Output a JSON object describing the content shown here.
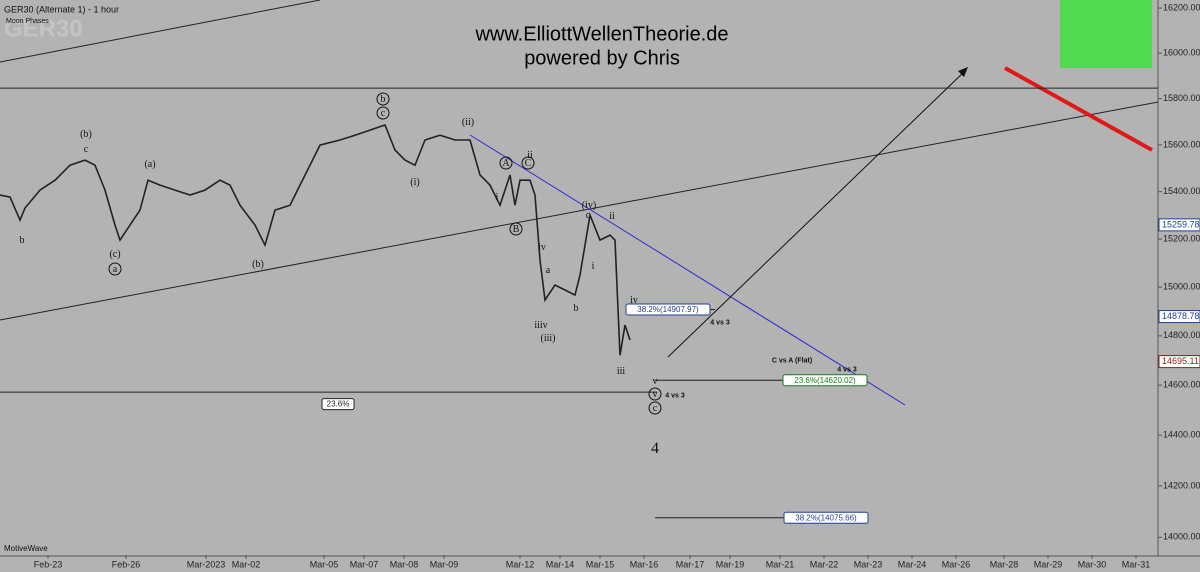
{
  "chart_data": {
    "type": "line",
    "title": "GER30 (Alternate 1) - 1 hour",
    "subtitle": "Moon Phases",
    "watermark": "GER30",
    "header": [
      "www.ElliottWellenTheorie.de",
      "powered by Chris"
    ],
    "footer": "MotiveWave",
    "log_scale": true,
    "color": "#222222",
    "x": [
      0,
      2.5,
      5,
      6.25,
      10,
      13.75,
      17.5,
      21.25,
      23.75,
      26.25,
      28.75,
      30,
      32.5,
      35,
      37,
      40,
      43.75,
      47.5,
      51.25,
      55,
      57.5,
      60,
      63.75,
      66.25,
      68.75,
      72.5,
      75,
      77.5,
      80,
      85,
      88.75,
      92.5,
      96.25,
      98.75,
      101.25,
      103.75,
      106.25,
      110,
      113.75,
      117.5,
      120,
      122.5,
      125,
      127.5,
      128.75,
      130,
      132.5,
      133.75,
      135,
      136.25,
      138.75,
      141.25,
      143.75,
      145,
      147.5,
      150,
      152.5,
      153.75,
      155,
      156.25,
      157.5
    ],
    "values": [
      15386,
      15377,
      15280,
      15331,
      15407,
      15449,
      15513,
      15535,
      15513,
      15407,
      15259,
      15196,
      15259,
      15322,
      15449,
      15428,
      15407,
      15386,
      15407,
      15449,
      15428,
      15343,
      15259,
      15175,
      15322,
      15343,
      15428,
      15513,
      15599,
      15621,
      15642,
      15664,
      15686,
      15578,
      15535,
      15513,
      15621,
      15642,
      15621,
      15621,
      15471,
      15428,
      15343,
      15471,
      15343,
      15449,
      15449,
      15386,
      15112,
      14947,
      15009,
      14988,
      14967,
      15050,
      15301,
      15196,
      15217,
      15196,
      14721,
      14844,
      14783
    ],
    "xlim": [
      0,
      289.5
    ],
    "xticks": [
      {
        "value": 12,
        "label": "Feb-23"
      },
      {
        "value": 31.5,
        "label": "Feb-26"
      },
      {
        "value": 51.5,
        "label": "Mar-2023"
      },
      {
        "value": 61.5,
        "label": "Mar-02"
      },
      {
        "value": 81,
        "label": "Mar-05"
      },
      {
        "value": 91,
        "label": "Mar-07"
      },
      {
        "value": 101,
        "label": "Mar-08"
      },
      {
        "value": 111,
        "label": "Mar-09"
      },
      {
        "value": 130,
        "label": "Mar-12"
      },
      {
        "value": 140,
        "label": "Mar-14"
      },
      {
        "value": 150,
        "label": "Mar-15"
      },
      {
        "value": 161,
        "label": "Mar-16"
      },
      {
        "value": 172.5,
        "label": "Mar-17"
      },
      {
        "value": 182.5,
        "label": "Mar-19"
      },
      {
        "value": 195,
        "label": "Mar-21"
      },
      {
        "value": 206,
        "label": "Mar-22"
      },
      {
        "value": 217,
        "label": "Mar-23"
      },
      {
        "value": 228,
        "label": "Mar-24"
      },
      {
        "value": 239,
        "label": "Mar-26"
      },
      {
        "value": 251,
        "label": "Mar-28"
      },
      {
        "value": 262,
        "label": "Mar-29"
      },
      {
        "value": 273,
        "label": "Mar-30"
      },
      {
        "value": 284,
        "label": "Mar-31"
      }
    ],
    "ylim": [
      13932,
      16236
    ],
    "yticks": [
      {
        "value": 16200,
        "label": "16200.00"
      },
      {
        "value": 16000,
        "label": "16000.00"
      },
      {
        "value": 15800,
        "label": "15800.00"
      },
      {
        "value": 15600,
        "label": "15600.00"
      },
      {
        "value": 15400,
        "label": "15400.00"
      },
      {
        "value": 15200,
        "label": "15200.00"
      },
      {
        "value": 15000,
        "label": "15000.00"
      },
      {
        "value": 14800,
        "label": "14800.00"
      },
      {
        "value": 14600,
        "label": "14600.00"
      },
      {
        "value": 14400,
        "label": "14400.00"
      },
      {
        "value": 14200,
        "label": "14200.00"
      },
      {
        "value": 14000,
        "label": "14000.00"
      }
    ],
    "price_markers": [
      {
        "value": 15259.78,
        "label": "15259.78",
        "color": "#1f3f8f"
      },
      {
        "value": 14878.78,
        "label": "14878.78",
        "color": "#1f3f8f"
      },
      {
        "value": 14695.11,
        "label": "14695.11",
        "color": "#8b1a1a"
      }
    ],
    "horizontal_lines": [
      15846
    ],
    "levels": [
      {
        "value": 14907.97,
        "label": "38.2%(14907.97)",
        "color": "#1f3f8f"
      },
      {
        "value": 14620.02,
        "label": "23.6%(14620.02)",
        "color": "#1a7a1a"
      },
      {
        "value": 14075.66,
        "label": "38.2%(14075.66)",
        "color": "#1f3f8f"
      },
      {
        "value": 14572,
        "label": "23.6%",
        "color": "#222222"
      }
    ],
    "annotations": [
      "(b)",
      "c",
      "(a)",
      "b",
      "(c)",
      "a",
      "(b)",
      "b",
      "c",
      "(ii)",
      "ii",
      "A",
      "C",
      "(i)",
      "i",
      "B",
      "iv",
      "(iv)",
      "c",
      "ii",
      "a",
      "i",
      "b",
      "iiiv",
      "(iii)",
      "iv",
      "iii",
      "v",
      "v",
      "4 vs 3",
      "c",
      "4",
      "4 vs 3",
      "C vs A (Flat)",
      "4 vs 3"
    ]
  }
}
